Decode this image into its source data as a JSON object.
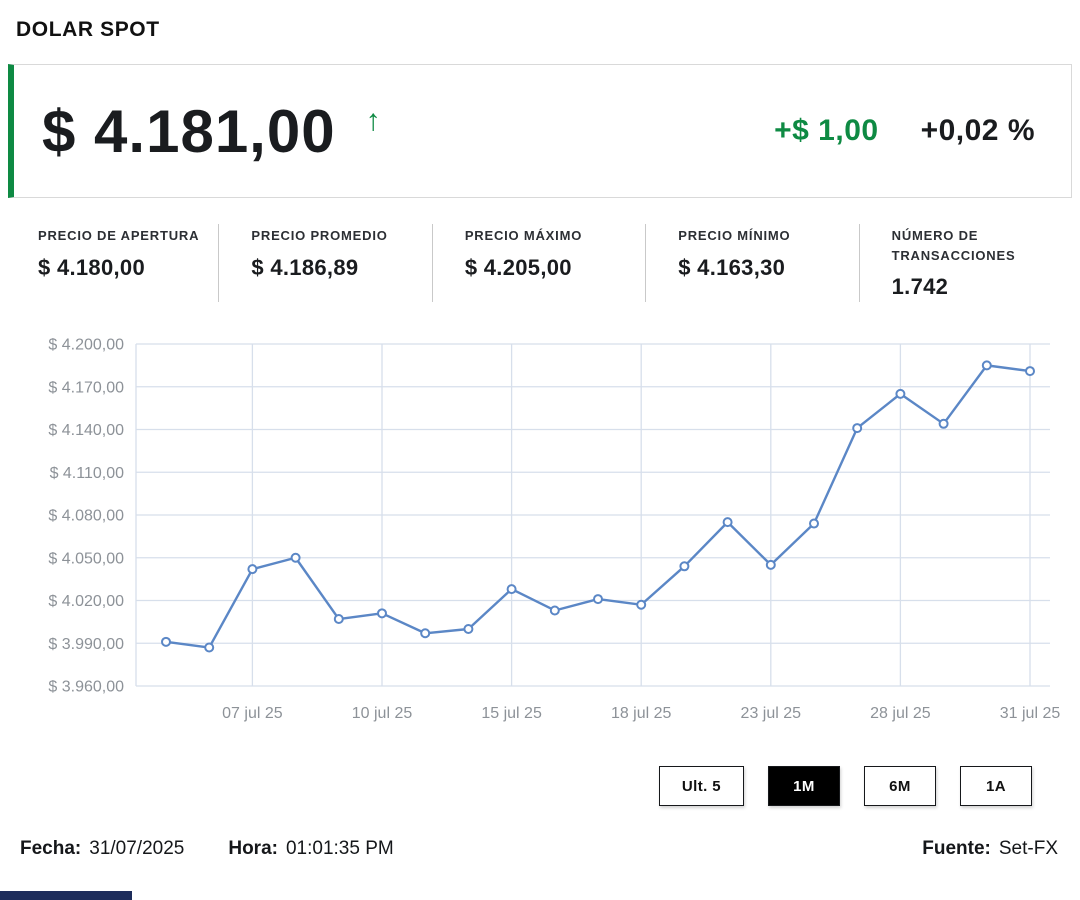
{
  "header": {
    "title": "DOLAR SPOT"
  },
  "quote": {
    "price": "$ 4.181,00",
    "direction_icon": "↑",
    "change_abs": "+$ 1,00",
    "change_pct": "+0,02 %",
    "accent_green": "#0e8a43"
  },
  "stats": [
    {
      "label": "PRECIO DE APERTURA",
      "value": "$ 4.180,00"
    },
    {
      "label": "PRECIO PROMEDIO",
      "value": "$ 4.186,89"
    },
    {
      "label": "PRECIO MÁXIMO",
      "value": "$ 4.205,00"
    },
    {
      "label": "PRECIO MÍNIMO",
      "value": "$ 4.163,30"
    },
    {
      "label": "NÚMERO DE TRANSACCIONES",
      "value": "1.742"
    }
  ],
  "chart_data": {
    "type": "line",
    "title": "",
    "xlabel": "",
    "ylabel": "",
    "grid": true,
    "legend": false,
    "line_color": "#5b87c6",
    "grid_color": "#d7dfeb",
    "marker": "open-circle",
    "ylim": [
      3960,
      4200
    ],
    "x": [
      "03 jul 25",
      "04 jul 25",
      "07 jul 25",
      "08 jul 25",
      "09 jul 25",
      "10 jul 25",
      "11 jul 25",
      "14 jul 25",
      "15 jul 25",
      "16 jul 25",
      "17 jul 25",
      "18 jul 25",
      "21 jul 25",
      "22 jul 25",
      "23 jul 25",
      "24 jul 25",
      "25 jul 25",
      "28 jul 25",
      "29 jul 25",
      "30 jul 25",
      "31 jul 25"
    ],
    "values": [
      3991,
      3987,
      4042,
      4050,
      4007,
      4011,
      3997,
      4000,
      4028,
      4013,
      4021,
      4017,
      4044,
      4075,
      4045,
      4074,
      4141,
      4165,
      4144,
      4185,
      4181
    ],
    "x_ticks": [
      {
        "i": 2,
        "label": "07 jul 25"
      },
      {
        "i": 5,
        "label": "10 jul 25"
      },
      {
        "i": 8,
        "label": "15 jul 25"
      },
      {
        "i": 11,
        "label": "18 jul 25"
      },
      {
        "i": 14,
        "label": "23 jul 25"
      },
      {
        "i": 17,
        "label": "28 jul 25"
      },
      {
        "i": 20,
        "label": "31 jul 25"
      }
    ],
    "y_ticks": [
      {
        "v": 4200,
        "label": "$ 4.200,00"
      },
      {
        "v": 4170,
        "label": "$ 4.170,00"
      },
      {
        "v": 4140,
        "label": "$ 4.140,00"
      },
      {
        "v": 4110,
        "label": "$ 4.110,00"
      },
      {
        "v": 4080,
        "label": "$ 4.080,00"
      },
      {
        "v": 4050,
        "label": "$ 4.050,00"
      },
      {
        "v": 4020,
        "label": "$ 4.020,00"
      },
      {
        "v": 3990,
        "label": "$ 3.990,00"
      },
      {
        "v": 3960,
        "label": "$ 3.960,00"
      }
    ]
  },
  "range_buttons": [
    {
      "label": "Ult. 5",
      "active": false
    },
    {
      "label": "1M",
      "active": true
    },
    {
      "label": "6M",
      "active": false
    },
    {
      "label": "1A",
      "active": false
    }
  ],
  "footer": {
    "fecha_label": "Fecha:",
    "fecha_value": "31/07/2025",
    "hora_label": "Hora:",
    "hora_value": "01:01:35 PM",
    "fuente_label": "Fuente:",
    "fuente_value": "Set-FX"
  }
}
